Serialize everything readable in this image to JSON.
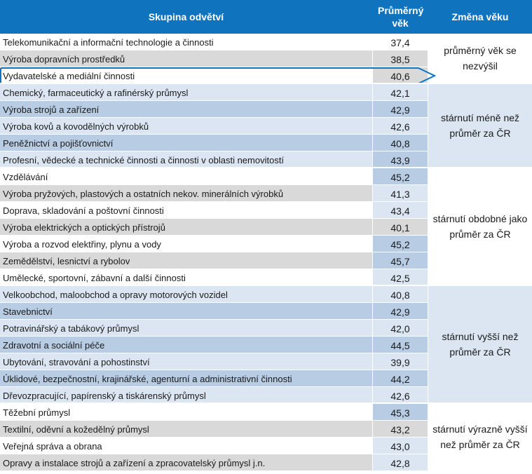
{
  "header": {
    "group_col": "Skupina odvětví",
    "avg_col": "Průměrný věk",
    "change_col": "Změna věku"
  },
  "rows": [
    {
      "name": "Telekomunikační a informační technologie a činnosti",
      "value": "37,4",
      "stripe": "#ffffff",
      "valbg": "#ffffff"
    },
    {
      "name": "Výroba dopravních prostředků",
      "value": "38,5",
      "stripe": "#d9d9d9",
      "valbg": "#d9d9d9"
    },
    {
      "name": "Vydavatelské a mediální činnosti",
      "value": "40,6",
      "stripe": "#ffffff",
      "valbg": "#d9d9d9"
    },
    {
      "name": "Chemický, farmaceutický a rafinérský průmysl",
      "value": "42,1",
      "stripe": "#dce6f2",
      "valbg": "#dce6f2"
    },
    {
      "name": "Výroba strojů a zařízení",
      "value": "42,9",
      "stripe": "#b8cce4",
      "valbg": "#b8cce4"
    },
    {
      "name": "Výroba kovů a kovodělných výrobků",
      "value": "42,6",
      "stripe": "#dce6f2",
      "valbg": "#dce6f2"
    },
    {
      "name": "Peněžnictví a pojišťovnictví",
      "value": "40,8",
      "stripe": "#b8cce4",
      "valbg": "#b8cce4"
    },
    {
      "name": "Profesní, vědecké a technické činnosti a činnosti v oblasti nemovitostí",
      "value": "43,9",
      "stripe": "#dce6f2",
      "valbg": "#b8cce4"
    },
    {
      "name": "Vzdělávání",
      "value": "45,2",
      "stripe": "#ffffff",
      "valbg": "#b8cce4"
    },
    {
      "name": "Výroba pryžových, plastových a ostatních nekov. minerálních výrobků",
      "value": "41,3",
      "stripe": "#d9d9d9",
      "valbg": "#dce6f2"
    },
    {
      "name": "Doprava, skladování a poštovní činnosti",
      "value": "43,4",
      "stripe": "#ffffff",
      "valbg": "#dce6f2"
    },
    {
      "name": "Výroba elektrických a optických přístrojů",
      "value": "40,1",
      "stripe": "#d9d9d9",
      "valbg": "#d9d9d9"
    },
    {
      "name": "Výroba a rozvod elektřiny, plynu a vody",
      "value": "45,2",
      "stripe": "#ffffff",
      "valbg": "#b8cce4"
    },
    {
      "name": "Zemědělství, lesnictví a rybolov",
      "value": "45,7",
      "stripe": "#d9d9d9",
      "valbg": "#b8cce4"
    },
    {
      "name": "Umělecké, sportovní, zábavní a další činnosti",
      "value": "42,5",
      "stripe": "#ffffff",
      "valbg": "#dce6f2"
    },
    {
      "name": "Velkoobchod, maloobchod a opravy motorových vozidel",
      "value": "40,8",
      "stripe": "#dce6f2",
      "valbg": "#dce6f2"
    },
    {
      "name": "Stavebnictví",
      "value": "42,9",
      "stripe": "#b8cce4",
      "valbg": "#b8cce4"
    },
    {
      "name": "Potravinářský a tabákový průmysl",
      "value": "42,0",
      "stripe": "#dce6f2",
      "valbg": "#dce6f2"
    },
    {
      "name": "Zdravotní a sociální péče",
      "value": "44,5",
      "stripe": "#b8cce4",
      "valbg": "#b8cce4"
    },
    {
      "name": "Ubytování, stravování a pohostinství",
      "value": "39,9",
      "stripe": "#dce6f2",
      "valbg": "#dce6f2"
    },
    {
      "name": "Úklidové, bezpečnostní, krajinářské, agenturní a administrativní činnosti",
      "value": "44,2",
      "stripe": "#b8cce4",
      "valbg": "#b8cce4"
    },
    {
      "name": "Dřevozpracující, papírenský a tiskárenský průmysl",
      "value": "42,6",
      "stripe": "#dce6f2",
      "valbg": "#dce6f2"
    },
    {
      "name": "Těžební průmysl",
      "value": "45,3",
      "stripe": "#ffffff",
      "valbg": "#b8cce4"
    },
    {
      "name": "Textilní, oděvní a kožedělný průmysl",
      "value": "43,2",
      "stripe": "#d9d9d9",
      "valbg": "#d9d9d9"
    },
    {
      "name": "Veřejná správa a obrana",
      "value": "43,0",
      "stripe": "#ffffff",
      "valbg": "#dce6f2"
    },
    {
      "name": "Opravy a instalace strojů a zařízení a zpracovatelský průmysl j.n.",
      "value": "42,8",
      "stripe": "#d9d9d9",
      "valbg": "#dce6f2"
    }
  ],
  "groups": [
    {
      "label": "průměrný věk se nezvýšil",
      "start": 0,
      "count": 3,
      "bg": "#ffffff"
    },
    {
      "label": "stárnutí méně než průměr za ČR",
      "start": 3,
      "count": 5,
      "bg": "#dce6f2"
    },
    {
      "label": "stárnutí obdobné jako průměr za ČR",
      "start": 8,
      "count": 7,
      "bg": "#ffffff"
    },
    {
      "label": "stárnutí vyšší než průměr za ČR",
      "start": 15,
      "count": 7,
      "bg": "#dce6f2"
    },
    {
      "label": "stárnutí výrazně vyšší než průměr za ČR",
      "start": 22,
      "count": 4,
      "bg": "#ffffff"
    }
  ],
  "colors": {
    "header_bg": "#0f73be",
    "highlight_border": "#0f73be"
  }
}
